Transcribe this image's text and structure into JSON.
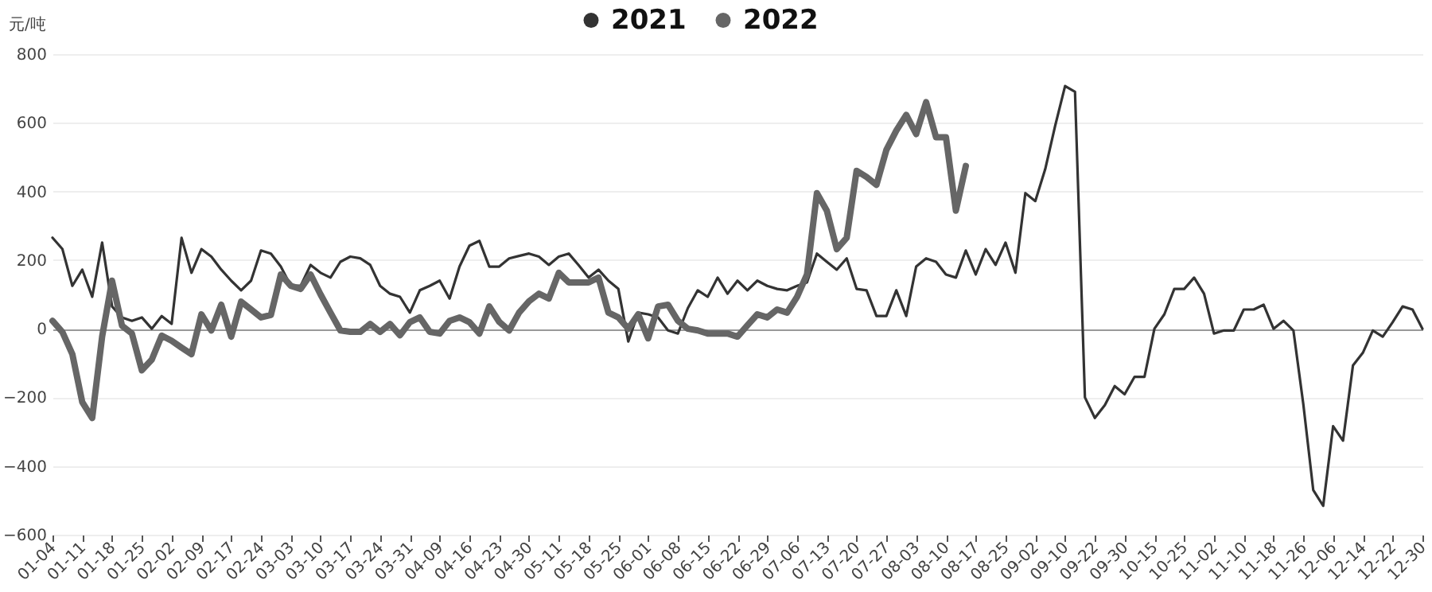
{
  "chart_data": {
    "type": "line",
    "ylabel": "元/吨",
    "categories": [
      "01-04",
      null,
      null,
      "01-11",
      null,
      null,
      "01-18",
      null,
      null,
      "01-25",
      null,
      null,
      "02-02",
      null,
      null,
      "02-09",
      null,
      null,
      "02-17",
      null,
      null,
      "02-24",
      null,
      null,
      "03-03",
      null,
      null,
      "03-10",
      null,
      null,
      "03-17",
      null,
      null,
      "03-24",
      null,
      null,
      "03-31",
      null,
      null,
      "04-09",
      null,
      null,
      "04-16",
      null,
      null,
      "04-23",
      null,
      null,
      "04-30",
      null,
      null,
      "05-11",
      null,
      null,
      "05-18",
      null,
      null,
      "05-25",
      null,
      null,
      "06-01",
      null,
      null,
      "06-08",
      null,
      null,
      "06-15",
      null,
      null,
      "06-22",
      null,
      null,
      "06-29",
      null,
      null,
      "07-06",
      null,
      null,
      "07-13",
      null,
      null,
      "07-20",
      null,
      null,
      "07-27",
      null,
      null,
      "08-03",
      null,
      null,
      "08-10",
      null,
      null,
      "08-17",
      null,
      null,
      "08-25",
      null,
      null,
      "09-02",
      null,
      null,
      "09-10",
      null,
      null,
      "09-22",
      null,
      null,
      "09-30",
      null,
      null,
      "10-15",
      null,
      null,
      "10-25",
      null,
      null,
      "11-02",
      null,
      null,
      "11-10",
      null,
      null,
      "11-18",
      null,
      null,
      "11-26",
      null,
      null,
      "12-06",
      null,
      null,
      "12-14",
      null,
      null,
      "12-22",
      null,
      null,
      "12-30"
    ],
    "series": [
      {
        "name": "2021",
        "color": "#333333",
        "values": [
          265,
          232,
          125,
          172,
          93,
          251,
          65,
          33,
          23,
          33,
          0,
          37,
          14,
          265,
          163,
          232,
          210,
          172,
          140,
          112,
          140,
          228,
          219,
          181,
          125,
          125,
          186,
          163,
          149,
          195,
          210,
          205,
          186,
          125,
          102,
          93,
          47,
          112,
          125,
          140,
          88,
          181,
          242,
          256,
          181,
          181,
          205,
          212,
          219,
          210,
          186,
          210,
          219,
          185,
          149,
          172,
          140,
          116,
          -37,
          47,
          42,
          33,
          -5,
          -14,
          60,
          112,
          93,
          149,
          102,
          140,
          112,
          140,
          125,
          116,
          112,
          125,
          135,
          219,
          195,
          172,
          205,
          116,
          112,
          37,
          37,
          112,
          37,
          181,
          205,
          195,
          158,
          149,
          228,
          158,
          232,
          186,
          251,
          163,
          395,
          372,
          465,
          591,
          707,
          690,
          -200,
          -260,
          -223,
          -167,
          -191,
          -140,
          -140,
          0,
          42,
          116,
          116,
          149,
          102,
          -14,
          -5,
          -5,
          56,
          56,
          70,
          0,
          23,
          -5,
          -220,
          -470,
          -516,
          -284,
          -326,
          -107,
          -70,
          -5,
          -23,
          19,
          65,
          56,
          0
        ]
      },
      {
        "name": "2022",
        "color": "#666666",
        "values": [
          23,
          -10,
          -74,
          -214,
          -260,
          -23,
          140,
          9,
          -14,
          -121,
          -90,
          -20,
          -35,
          -55,
          -74,
          42,
          -5,
          70,
          -23,
          79,
          56,
          33,
          40,
          158,
          125,
          116,
          158,
          100,
          47,
          -5,
          -9,
          -9,
          14,
          -9,
          14,
          -19,
          19,
          33,
          -9,
          -14,
          23,
          33,
          19,
          -14,
          65,
          20,
          -5,
          47,
          80,
          102,
          88,
          163,
          135,
          135,
          135,
          149,
          47,
          33,
          0,
          42,
          -28,
          65,
          70,
          23,
          0,
          -5,
          -14,
          -14,
          -14,
          -23,
          10,
          42,
          33,
          56,
          47,
          93,
          158,
          395,
          344,
          232,
          265,
          460,
          442,
          419,
          521,
          577,
          623,
          567,
          660,
          558,
          558,
          344,
          474,
          null,
          null,
          null,
          null,
          null,
          null,
          null,
          null,
          null,
          null,
          null,
          null,
          null,
          null,
          null,
          null,
          null,
          null,
          null,
          null,
          null,
          null,
          null,
          null,
          null,
          null,
          null,
          null,
          null,
          null,
          null,
          null,
          null,
          null,
          null,
          null,
          null,
          null,
          null,
          null,
          null,
          null,
          null,
          null,
          null,
          null
        ]
      }
    ],
    "ylim": [
      -600,
      800
    ],
    "yticks": [
      -600,
      -400,
      -200,
      0,
      200,
      400,
      600,
      800
    ],
    "grid": "y",
    "legend": "top",
    "line_style": "solid"
  }
}
